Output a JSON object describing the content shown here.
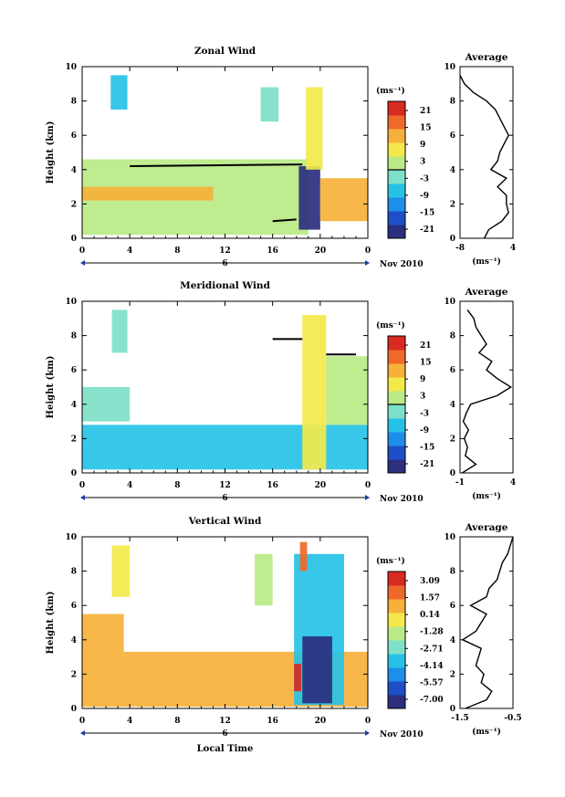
{
  "chart_data": [
    {
      "type": "heatmap",
      "title": "Zonal Wind",
      "xlabel": "",
      "ylabel": "Height (km)",
      "xlim": [
        0,
        24
      ],
      "x_ticks": [
        "0",
        "4",
        "8",
        "12",
        "16",
        "20",
        "0"
      ],
      "ylim": [
        0,
        10
      ],
      "y_ticks": [
        "0",
        "2",
        "4",
        "6",
        "8",
        "10"
      ],
      "date_marker": "6",
      "date_label": "Nov 2010",
      "colorbar": {
        "unit": "(ms⁻¹)",
        "ticks": [
          "21",
          "15",
          "9",
          "3",
          "-3",
          "-9",
          "-15",
          "-21"
        ],
        "contour_at": "0"
      },
      "regions": [
        {
          "t0": 0,
          "t1": 19,
          "h0": 0.2,
          "h1": 4.6,
          "value": 4
        },
        {
          "t0": 0,
          "t1": 11,
          "h0": 2.2,
          "h1": 3.0,
          "value": 11
        },
        {
          "t0": 2.4,
          "t1": 3.8,
          "h0": 7.5,
          "h1": 9.5,
          "value": -9
        },
        {
          "t0": 15,
          "t1": 16.5,
          "h0": 6.8,
          "h1": 8.8,
          "value": -2
        },
        {
          "t0": 18.2,
          "t1": 20,
          "h0": 0.5,
          "h1": 4.2,
          "value": -21
        },
        {
          "t0": 18.8,
          "t1": 20.2,
          "h0": 4.0,
          "h1": 8.8,
          "value": 6
        },
        {
          "t0": 20,
          "t1": 24,
          "h0": 1.0,
          "h1": 3.5,
          "value": 13
        }
      ],
      "lines": [
        {
          "x": [
            4,
            18.5
          ],
          "y": [
            4.2,
            4.3
          ]
        },
        {
          "x": [
            16,
            18
          ],
          "y": [
            1.0,
            1.1
          ]
        }
      ],
      "average": {
        "title": "Average",
        "xlabel": "(ms⁻¹)",
        "xlim": [
          -8,
          4
        ],
        "x_ticks": [
          "-8",
          "4"
        ],
        "y_ticks": [
          "0",
          "2",
          "4",
          "6",
          "8",
          "10"
        ],
        "profile": {
          "height": [
            0,
            0.5,
            1,
            1.5,
            2,
            2.5,
            3,
            3.5,
            4,
            4.5,
            5,
            5.5,
            6,
            6.5,
            7,
            7.5,
            8,
            8.5,
            9,
            9.5
          ],
          "value": [
            -2.5,
            -1.5,
            1.5,
            3,
            2.5,
            2.5,
            0.5,
            2.5,
            -1,
            0.5,
            1,
            2,
            3,
            2,
            1,
            0,
            -2,
            -5,
            -7,
            -8
          ]
        }
      }
    },
    {
      "type": "heatmap",
      "title": "Meridional Wind",
      "xlabel": "",
      "ylabel": "Height (km)",
      "xlim": [
        0,
        24
      ],
      "x_ticks": [
        "0",
        "4",
        "8",
        "12",
        "16",
        "20",
        "0"
      ],
      "ylim": [
        0,
        10
      ],
      "y_ticks": [
        "0",
        "2",
        "4",
        "6",
        "8",
        "10"
      ],
      "date_marker": "6",
      "date_label": "Nov 2010",
      "colorbar": {
        "unit": "(ms⁻¹)",
        "ticks": [
          "21",
          "15",
          "9",
          "3",
          "-3",
          "-9",
          "-15",
          "-21"
        ],
        "contour_at": "0"
      },
      "regions": [
        {
          "t0": 0,
          "t1": 24,
          "h0": 0.2,
          "h1": 2.8,
          "value": -6
        },
        {
          "t0": 0,
          "t1": 4,
          "h0": 3.0,
          "h1": 5.0,
          "value": -3
        },
        {
          "t0": 2.5,
          "t1": 3.8,
          "h0": 7.0,
          "h1": 9.5,
          "value": -4
        },
        {
          "t0": 18.5,
          "t1": 20.5,
          "h0": 0.2,
          "h1": 9.2,
          "value": 6
        },
        {
          "t0": 20.5,
          "t1": 24,
          "h0": 2.8,
          "h1": 6.8,
          "value": 4
        }
      ],
      "lines": [
        {
          "x": [
            16,
            18.5
          ],
          "y": [
            7.8,
            7.8
          ]
        },
        {
          "x": [
            20.5,
            23
          ],
          "y": [
            6.9,
            6.9
          ]
        }
      ],
      "average": {
        "title": "Average",
        "xlabel": "(ms⁻¹)",
        "xlim": [
          -1,
          4
        ],
        "x_ticks": [
          "-1",
          "4"
        ],
        "y_ticks": [
          "0",
          "2",
          "4",
          "6",
          "8",
          "10"
        ],
        "profile": {
          "height": [
            0,
            0.5,
            1,
            1.5,
            2,
            2.5,
            3,
            3.5,
            4,
            4.5,
            5,
            5.5,
            6,
            6.5,
            7,
            7.5,
            8,
            8.5,
            9,
            9.5
          ],
          "value": [
            -0.8,
            0.5,
            -0.5,
            -0.3,
            -0.6,
            -0.2,
            -0.7,
            -0.4,
            0,
            2.5,
            3.8,
            2.5,
            1.5,
            2,
            0.8,
            1.5,
            1,
            0.5,
            0.3,
            -0.3
          ]
        }
      }
    },
    {
      "type": "heatmap",
      "title": "Vertical Wind",
      "xlabel": "Local Time",
      "ylabel": "Height (km)",
      "xlim": [
        0,
        24
      ],
      "x_ticks": [
        "0",
        "4",
        "8",
        "12",
        "16",
        "20",
        "0"
      ],
      "ylim": [
        0,
        10
      ],
      "y_ticks": [
        "0",
        "2",
        "4",
        "6",
        "8",
        "10"
      ],
      "date_marker": "6",
      "date_label": "Nov 2010",
      "colorbar": {
        "unit": "(ms⁻¹)",
        "ticks": [
          "3.09",
          "1.57",
          "0.14",
          "-1.28",
          "-2.71",
          "-4.14",
          "-5.57",
          "-7.00"
        ]
      },
      "regions": [
        {
          "t0": 0,
          "t1": 24,
          "h0": 0.1,
          "h1": 3.3,
          "value": 0.8
        },
        {
          "t0": 0,
          "t1": 3.5,
          "h0": 3.3,
          "h1": 5.5,
          "value": 0.5
        },
        {
          "t0": 2.5,
          "t1": 4.0,
          "h0": 6.5,
          "h1": 9.5,
          "value": -0.5
        },
        {
          "t0": 14.5,
          "t1": 16.0,
          "h0": 6.0,
          "h1": 9.0,
          "value": -0.8
        },
        {
          "t0": 17.8,
          "t1": 22.0,
          "h0": 0.2,
          "h1": 9.0,
          "value": -3.5
        },
        {
          "t0": 18.5,
          "t1": 21.0,
          "h0": 0.3,
          "h1": 4.2,
          "value": -6.8
        },
        {
          "t0": 17.8,
          "t1": 18.4,
          "h0": 1.0,
          "h1": 2.6,
          "value": 3.0
        },
        {
          "t0": 18.3,
          "t1": 18.9,
          "h0": 8.0,
          "h1": 9.7,
          "value": 2.0
        }
      ],
      "lines": [],
      "average": {
        "title": "Average",
        "xlabel": "(ms⁻¹)",
        "xlim": [
          -1.5,
          -0.5
        ],
        "x_ticks": [
          "-1.5",
          "-0.5"
        ],
        "y_ticks": [
          "0",
          "2",
          "4",
          "6",
          "8",
          "10"
        ],
        "profile": {
          "height": [
            0,
            0.5,
            1,
            1.5,
            2,
            2.5,
            3,
            3.5,
            4,
            4.5,
            5,
            5.5,
            6,
            6.5,
            7,
            7.5,
            8,
            8.5,
            9,
            9.5,
            10
          ],
          "value": [
            -1.4,
            -1.0,
            -0.9,
            -1.1,
            -1.05,
            -1.2,
            -1.15,
            -1.1,
            -1.45,
            -1.2,
            -1.1,
            -1.0,
            -1.3,
            -1.0,
            -0.95,
            -0.8,
            -0.75,
            -0.7,
            -0.6,
            -0.55,
            -0.5
          ]
        }
      }
    }
  ]
}
